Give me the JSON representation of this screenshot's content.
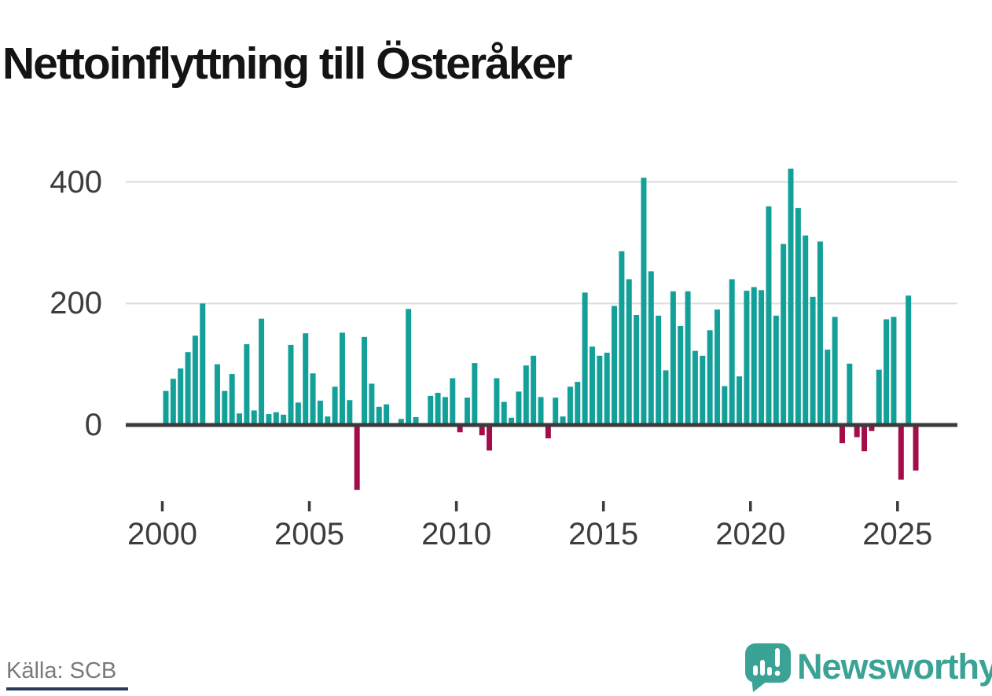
{
  "title": "Nettoinflyttning till Österåker",
  "source": "Källa: SCB",
  "branding": {
    "logo_text": "Newsworthy",
    "logo_icon": "newsworthy-speech-bubble-barchart-icon"
  },
  "colors": {
    "positive_bar": "#13A099",
    "negative_bar": "#A30D4B",
    "brand_teal": "#3AA396",
    "grid": "#DCDCDC",
    "axis": "#3B3B3B",
    "label_text": "#3D3D3D",
    "source_text": "#7A7A7A",
    "title_text": "#141414",
    "footer_strip": "#2B3B5E"
  },
  "chart_data": {
    "type": "bar",
    "title": "Nettoinflyttning till Österåker",
    "xlabel": "",
    "ylabel": "",
    "y_ticks": [
      0,
      200,
      400
    ],
    "ylim": [
      -130,
      440
    ],
    "grid": "horizontal-at-200-and-400",
    "legend": "none",
    "bar_unit": "persons per quarter (net migration)",
    "x_ticks": [
      {
        "label": "2000",
        "index": 0
      },
      {
        "label": "2005",
        "index": 20
      },
      {
        "label": "2010",
        "index": 40
      },
      {
        "label": "2015",
        "index": 60
      },
      {
        "label": "2020",
        "index": 80
      },
      {
        "label": "2025",
        "index": 100
      }
    ],
    "x": [
      "2000Q1",
      "2000Q2",
      "2000Q3",
      "2000Q4",
      "2001Q1",
      "2001Q2",
      "2001Q3",
      "2001Q4",
      "2002Q1",
      "2002Q2",
      "2002Q3",
      "2002Q4",
      "2003Q1",
      "2003Q2",
      "2003Q3",
      "2003Q4",
      "2004Q1",
      "2004Q2",
      "2004Q3",
      "2004Q4",
      "2005Q1",
      "2005Q2",
      "2005Q3",
      "2005Q4",
      "2006Q1",
      "2006Q2",
      "2006Q3",
      "2006Q4",
      "2007Q1",
      "2007Q2",
      "2007Q3",
      "2007Q4",
      "2008Q1",
      "2008Q2",
      "2008Q3",
      "2008Q4",
      "2009Q1",
      "2009Q2",
      "2009Q3",
      "2009Q4",
      "2010Q1",
      "2010Q2",
      "2010Q3",
      "2010Q4",
      "2011Q1",
      "2011Q2",
      "2011Q3",
      "2011Q4",
      "2012Q1",
      "2012Q2",
      "2012Q3",
      "2012Q4",
      "2013Q1",
      "2013Q2",
      "2013Q3",
      "2013Q4",
      "2014Q1",
      "2014Q2",
      "2014Q3",
      "2014Q4",
      "2015Q1",
      "2015Q2",
      "2015Q3",
      "2015Q4",
      "2016Q1",
      "2016Q2",
      "2016Q3",
      "2016Q4",
      "2017Q1",
      "2017Q2",
      "2017Q3",
      "2017Q4",
      "2018Q1",
      "2018Q2",
      "2018Q3",
      "2018Q4",
      "2019Q1",
      "2019Q2",
      "2019Q3",
      "2019Q4",
      "2020Q1",
      "2020Q2",
      "2020Q3",
      "2020Q4",
      "2021Q1",
      "2021Q2",
      "2021Q3",
      "2021Q4",
      "2022Q1",
      "2022Q2",
      "2022Q3",
      "2022Q4",
      "2023Q1",
      "2023Q2",
      "2023Q3",
      "2023Q4",
      "2024Q1",
      "2024Q2",
      "2024Q3",
      "2024Q4",
      "2025Q1",
      "2025Q2",
      "2025Q3"
    ],
    "values": [
      56,
      76,
      93,
      120,
      147,
      200,
      2,
      100,
      56,
      84,
      19,
      133,
      24,
      175,
      18,
      21,
      17,
      132,
      37,
      151,
      85,
      40,
      14,
      63,
      152,
      41,
      -107,
      145,
      68,
      30,
      34,
      2,
      10,
      191,
      13,
      2,
      48,
      53,
      46,
      77,
      -12,
      45,
      102,
      -17,
      -42,
      77,
      38,
      12,
      55,
      98,
      114,
      46,
      -22,
      45,
      14,
      63,
      71,
      218,
      129,
      114,
      119,
      196,
      286,
      240,
      181,
      407,
      253,
      180,
      90,
      220,
      163,
      220,
      122,
      114,
      156,
      190,
      64,
      240,
      80,
      221,
      227,
      222,
      360,
      180,
      298,
      422,
      357,
      312,
      211,
      302,
      124,
      178,
      -30,
      101,
      -20,
      -43,
      -10,
      91,
      174,
      178,
      -90,
      213,
      -75
    ]
  }
}
